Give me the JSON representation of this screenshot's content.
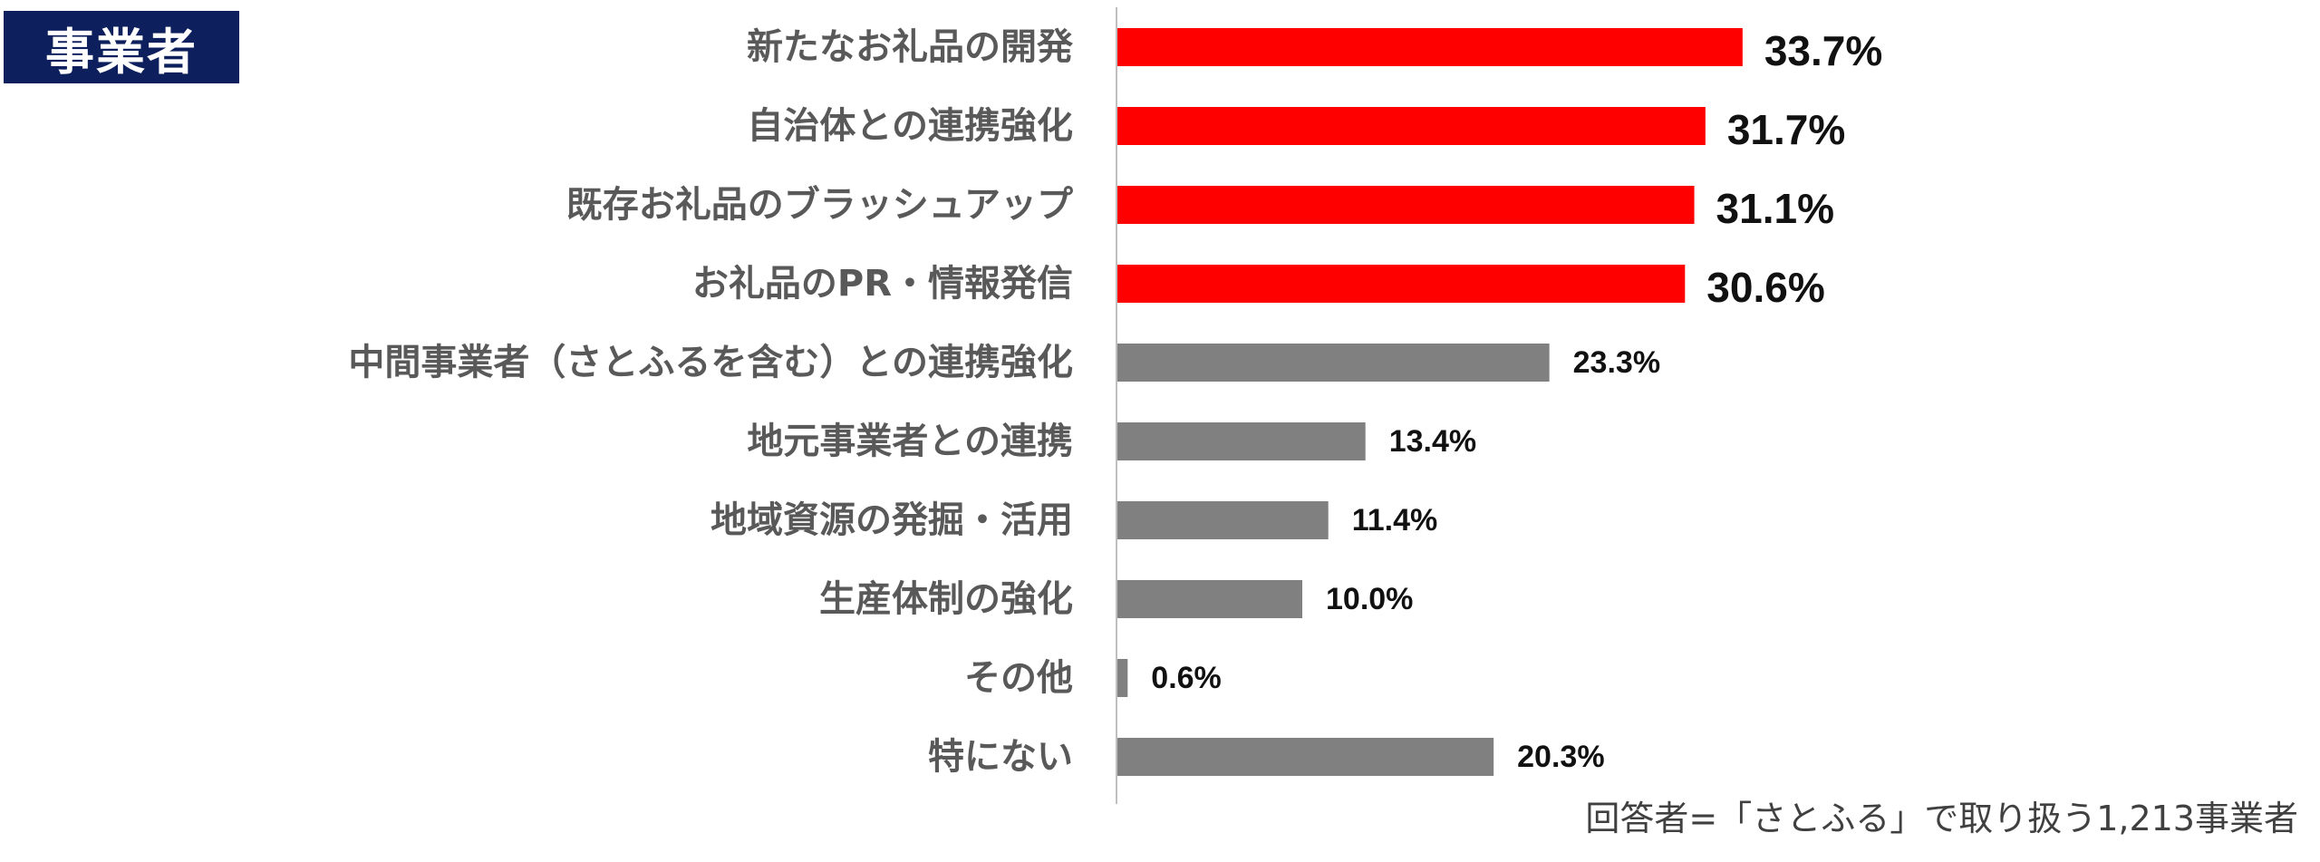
{
  "badge": {
    "label": "事業者"
  },
  "chart_data": {
    "type": "bar",
    "orientation": "horizontal",
    "categories": [
      "新たなお礼品の開発",
      "自治体との連携強化",
      "既存お礼品のブラッシュアップ",
      "お礼品のPR・情報発信",
      "中間事業者（さとふるを含む）との連携強化",
      "地元事業者との連携",
      "地域資源の発掘・活用",
      "生産体制の強化",
      "その他",
      "特にない"
    ],
    "values": [
      33.7,
      31.7,
      31.1,
      30.6,
      23.3,
      13.4,
      11.4,
      10.0,
      0.6,
      20.3
    ],
    "value_labels": [
      "33.7%",
      "31.7%",
      "31.1%",
      "30.6%",
      "23.3%",
      "13.4%",
      "11.4%",
      "10.0%",
      "0.6%",
      "20.3%"
    ],
    "highlighted": [
      true,
      true,
      true,
      true,
      false,
      false,
      false,
      false,
      false,
      false
    ],
    "xlim": [
      0,
      50
    ],
    "grid": false,
    "colors": {
      "highlight": "#ff0000",
      "default": "#808080",
      "axis": "#bfbfbf"
    }
  },
  "footnote": "回答者=「さとふる」で取り扱う1,213事業者"
}
